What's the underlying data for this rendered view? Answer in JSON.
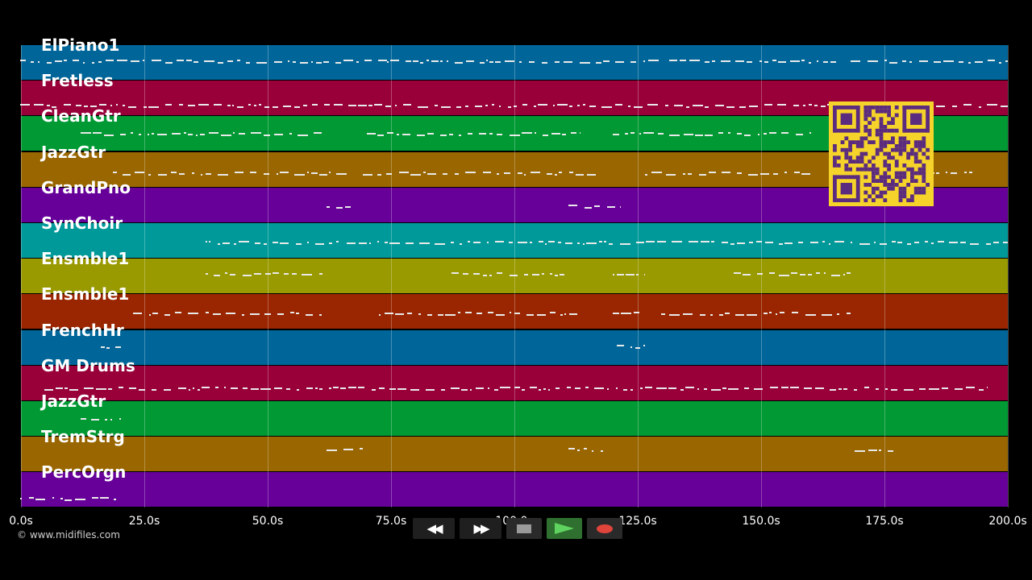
{
  "tracks": [
    {
      "name": "ElPiano1",
      "color": "#006699"
    },
    {
      "name": "Fretless",
      "color": "#99003a"
    },
    {
      "name": "CleanGtr",
      "color": "#009933"
    },
    {
      "name": "JazzGtr",
      "color": "#996600"
    },
    {
      "name": "GrandPno",
      "color": "#660099"
    },
    {
      "name": "SynChoir",
      "color": "#009999"
    },
    {
      "name": "Ensmble1",
      "color": "#999900"
    },
    {
      "name": "Ensmble1",
      "color": "#992600"
    },
    {
      "name": "FrenchHr",
      "color": "#006699"
    },
    {
      "name": "GM Drums",
      "color": "#99003a"
    },
    {
      "name": "JazzGtr",
      "color": "#009933"
    },
    {
      "name": "TremStrg",
      "color": "#996600"
    },
    {
      "name": "PercOrgn",
      "color": "#660099"
    }
  ],
  "timeline": {
    "ticks": [
      "0.0s",
      "25.0s",
      "50.0s",
      "75.0s",
      "100.0s",
      "125.0s",
      "150.0s",
      "175.0s",
      "200.0s"
    ],
    "max_seconds": 200.0
  },
  "credit": "© www.midifiles.com",
  "transport": {
    "rewind_icon": "rewind-icon",
    "forward_icon": "fast-forward-icon",
    "stop_icon": "stop-icon",
    "play_icon": "play-icon",
    "record_icon": "record-icon"
  },
  "qr_code": {
    "color": "#f5d32a"
  }
}
